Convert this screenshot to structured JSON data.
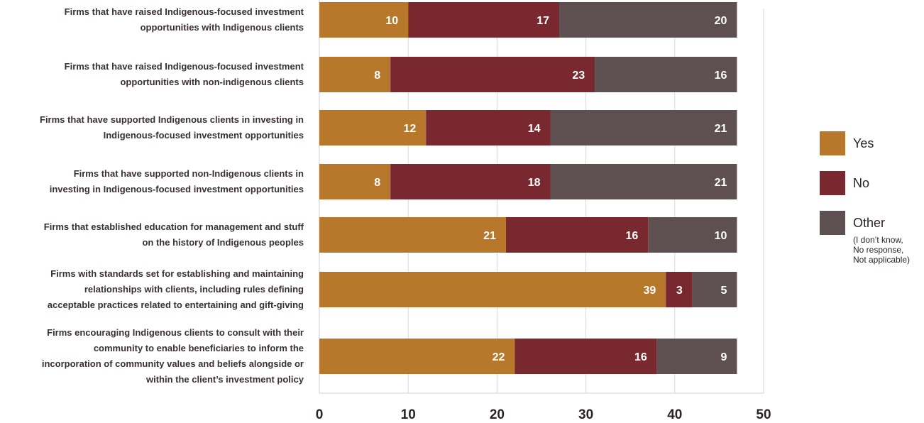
{
  "chart_data": {
    "type": "bar",
    "orientation": "horizontal",
    "stacked": true,
    "categories": [
      [
        "Firms that have raised Indigenous-focused investment",
        "opportunities with Indigenous clients"
      ],
      [
        "Firms that have raised Indigenous-focused investment",
        "opportunities with non-indigenous clients"
      ],
      [
        "Firms that have supported Indigenous clients in investing in",
        "Indigenous-focused investment opportunities"
      ],
      [
        "Firms that have supported non-Indigenous clients in",
        "investing in Indigenous-focused investment opportunities"
      ],
      [
        "Firms that established education for management and stuff",
        "on the history of Indigenous peoples"
      ],
      [
        "Firms with standards set for establishing and maintaining",
        "relationships with clients, including rules defining",
        "acceptable practices related to entertaining and gift-giving"
      ],
      [
        "Firms encouraging Indigenous clients to consult with their",
        "community to enable beneficiaries to inform the",
        "incorporation of community values and beliefs alongside or",
        "within the client’s investment policy"
      ]
    ],
    "series": [
      {
        "name": "Yes",
        "color": "#b8782c",
        "values": [
          10,
          8,
          12,
          8,
          21,
          39,
          22
        ]
      },
      {
        "name": "No",
        "color": "#7a2830",
        "values": [
          17,
          23,
          14,
          18,
          16,
          3,
          16
        ]
      },
      {
        "name": "Other",
        "note": [
          "(I don’t know,",
          "No response,",
          "Not applicable)"
        ],
        "color": "#5e5050",
        "values": [
          20,
          16,
          21,
          21,
          10,
          5,
          9
        ]
      }
    ],
    "xlim": [
      0,
      50
    ],
    "xticks": [
      0,
      10,
      20,
      30,
      40,
      50
    ],
    "grid": true,
    "legend_position": "right"
  }
}
